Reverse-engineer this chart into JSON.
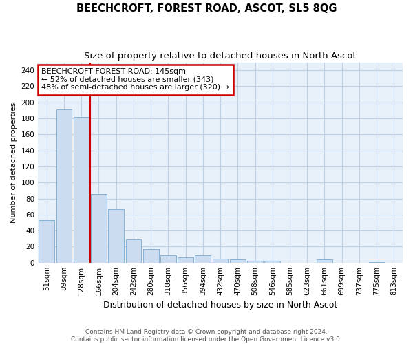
{
  "title": "BEECHCROFT, FOREST ROAD, ASCOT, SL5 8QG",
  "subtitle": "Size of property relative to detached houses in North Ascot",
  "xlabel": "Distribution of detached houses by size in North Ascot",
  "ylabel": "Number of detached properties",
  "categories": [
    "51sqm",
    "89sqm",
    "128sqm",
    "166sqm",
    "204sqm",
    "242sqm",
    "280sqm",
    "318sqm",
    "356sqm",
    "394sqm",
    "432sqm",
    "470sqm",
    "508sqm",
    "546sqm",
    "585sqm",
    "623sqm",
    "661sqm",
    "699sqm",
    "737sqm",
    "775sqm",
    "813sqm"
  ],
  "values": [
    53,
    191,
    182,
    86,
    67,
    29,
    17,
    9,
    7,
    9,
    5,
    4,
    2,
    2,
    0,
    0,
    4,
    0,
    0,
    1,
    0
  ],
  "bar_color": "#ccdcf0",
  "bar_edge_color": "#7aaad0",
  "grid_color": "#c0d0e4",
  "background_color": "#e8f0fa",
  "property_line_x": 2.5,
  "annotation_line1": "BEECHCROFT FOREST ROAD: 145sqm",
  "annotation_line2": "← 52% of detached houses are smaller (343)",
  "annotation_line3": "48% of semi-detached houses are larger (320) →",
  "annotation_box_color": "#ffffff",
  "annotation_box_edge": "#cc0000",
  "vline_color": "#cc0000",
  "ylim": [
    0,
    250
  ],
  "yticks": [
    0,
    20,
    40,
    60,
    80,
    100,
    120,
    140,
    160,
    180,
    200,
    220,
    240
  ],
  "footer1": "Contains HM Land Registry data © Crown copyright and database right 2024.",
  "footer2": "Contains public sector information licensed under the Open Government Licence v3.0.",
  "title_fontsize": 10.5,
  "subtitle_fontsize": 9.5,
  "xlabel_fontsize": 9,
  "ylabel_fontsize": 8,
  "tick_fontsize": 7.5,
  "footer_fontsize": 6.5,
  "annotation_fontsize": 8
}
